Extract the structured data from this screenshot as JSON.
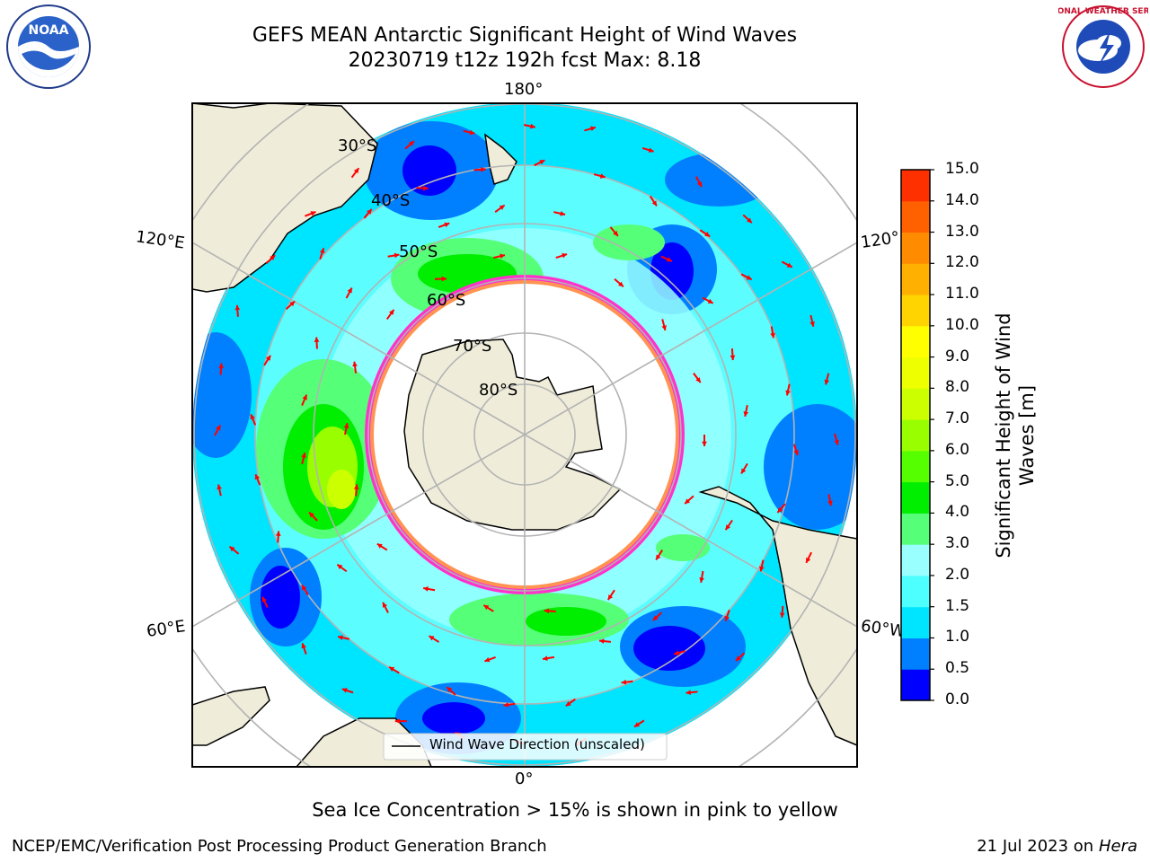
{
  "header": {
    "title": "GEFS MEAN Antarctic Significant Height of Wind Waves",
    "subtitle": "20230719 t12z 192h fcst   Max: 8.18"
  },
  "logos": {
    "left": "NOAA",
    "right": "NATIONAL WEATHER SERVICE"
  },
  "map": {
    "lon_labels": {
      "top": "180°",
      "bottom": "0°",
      "left_upper": "120°E",
      "left_lower": "60°E",
      "right_upper": "120°",
      "right_lower": "60°W"
    },
    "lat_labels": [
      "30°S",
      "40°S",
      "50°S",
      "60°S",
      "70°S",
      "80°S"
    ],
    "legend": "Wind Wave Direction (unscaled)",
    "colors": {
      "land": "#efedd9",
      "ice_edge": "#ff33cc",
      "arrow": "#ff0000"
    }
  },
  "colorbar": {
    "label": "Significant Height of Wind Waves [m]",
    "ticks": [
      "15.0",
      "14.0",
      "13.0",
      "12.0",
      "11.0",
      "10.0",
      "9.0",
      "8.0",
      "7.0",
      "6.0",
      "5.0",
      "4.0",
      "3.0",
      "2.0",
      "1.5",
      "1.0",
      "0.5",
      "0.0"
    ],
    "colors": [
      "#0000ff",
      "#0080ff",
      "#00e5ff",
      "#4dffff",
      "#99ffff",
      "#55ff77",
      "#00ee00",
      "#55ff00",
      "#99ff00",
      "#ccff00",
      "#eeff00",
      "#ffff00",
      "#ffd400",
      "#ffb000",
      "#ff8c00",
      "#ff6000",
      "#ff3000"
    ]
  },
  "footer": {
    "note": "Sea Ice Concentration > 15% is shown in pink to yellow",
    "left": "NCEP/EMC/Verification Post Processing Product Generation Branch",
    "right_date": "21 Jul 2023 on ",
    "right_host": "Hera"
  }
}
